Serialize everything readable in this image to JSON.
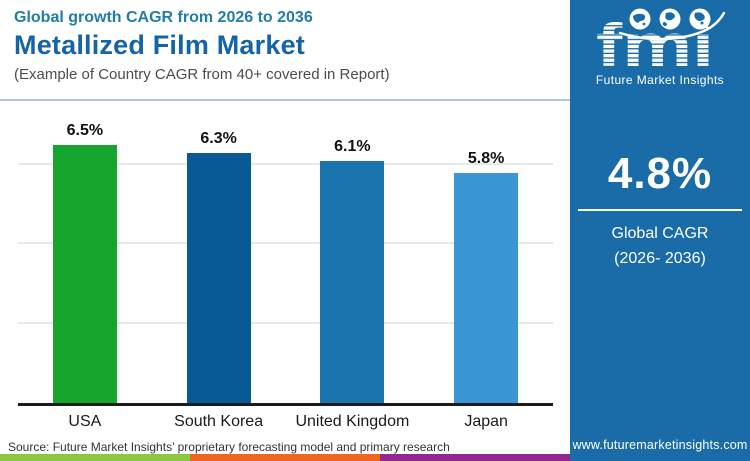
{
  "header": {
    "subtitle": "Global growth CAGR from 2026 to 2036",
    "title": "Metallized Film Market",
    "note": "(Example of Country CAGR from 40+ covered in Report)"
  },
  "chart_data": {
    "type": "bar",
    "title": "Metallized Film Market",
    "subtitle": "Global growth CAGR from 2026 to 2036",
    "categories": [
      "USA",
      "South Korea",
      "United Kingdom",
      "Japan"
    ],
    "values": [
      6.5,
      6.3,
      6.1,
      5.8
    ],
    "value_labels": [
      "6.5%",
      "6.3%",
      "6.1%",
      "5.8%"
    ],
    "bar_colors": [
      "#17a62d",
      "#085a96",
      "#1c74ae",
      "#3b97d3"
    ],
    "xlabel": "",
    "ylabel": "",
    "ylim": [
      0,
      7.6
    ],
    "gridline_values": [
      2,
      4,
      6
    ],
    "grid": true,
    "legend": false,
    "y_tick_labels_visible": false
  },
  "source": "Source: Future Market Insights’ proprietary forecasting model and primary research",
  "panel": {
    "logo_text": "fmi",
    "logo_subtext": "Future Market Insights",
    "cagr_value": "4.8%",
    "cagr_label_line1": "Global CAGR",
    "cagr_label_line2": "(2026- 2036)",
    "url": "www.futuremarketinsights.com",
    "background": "#1a6ca9"
  },
  "colors": {
    "header_subtitle": "#1f7da9",
    "header_title": "#1563a8",
    "header_note": "#4c4c4c",
    "panel_background": "#1a6ca9",
    "axis_line": "#1c1c1c",
    "gridline": "#e9e9e9"
  },
  "footer_strip_colors": [
    "#8dc63f",
    "#f16522",
    "#92278f"
  ]
}
